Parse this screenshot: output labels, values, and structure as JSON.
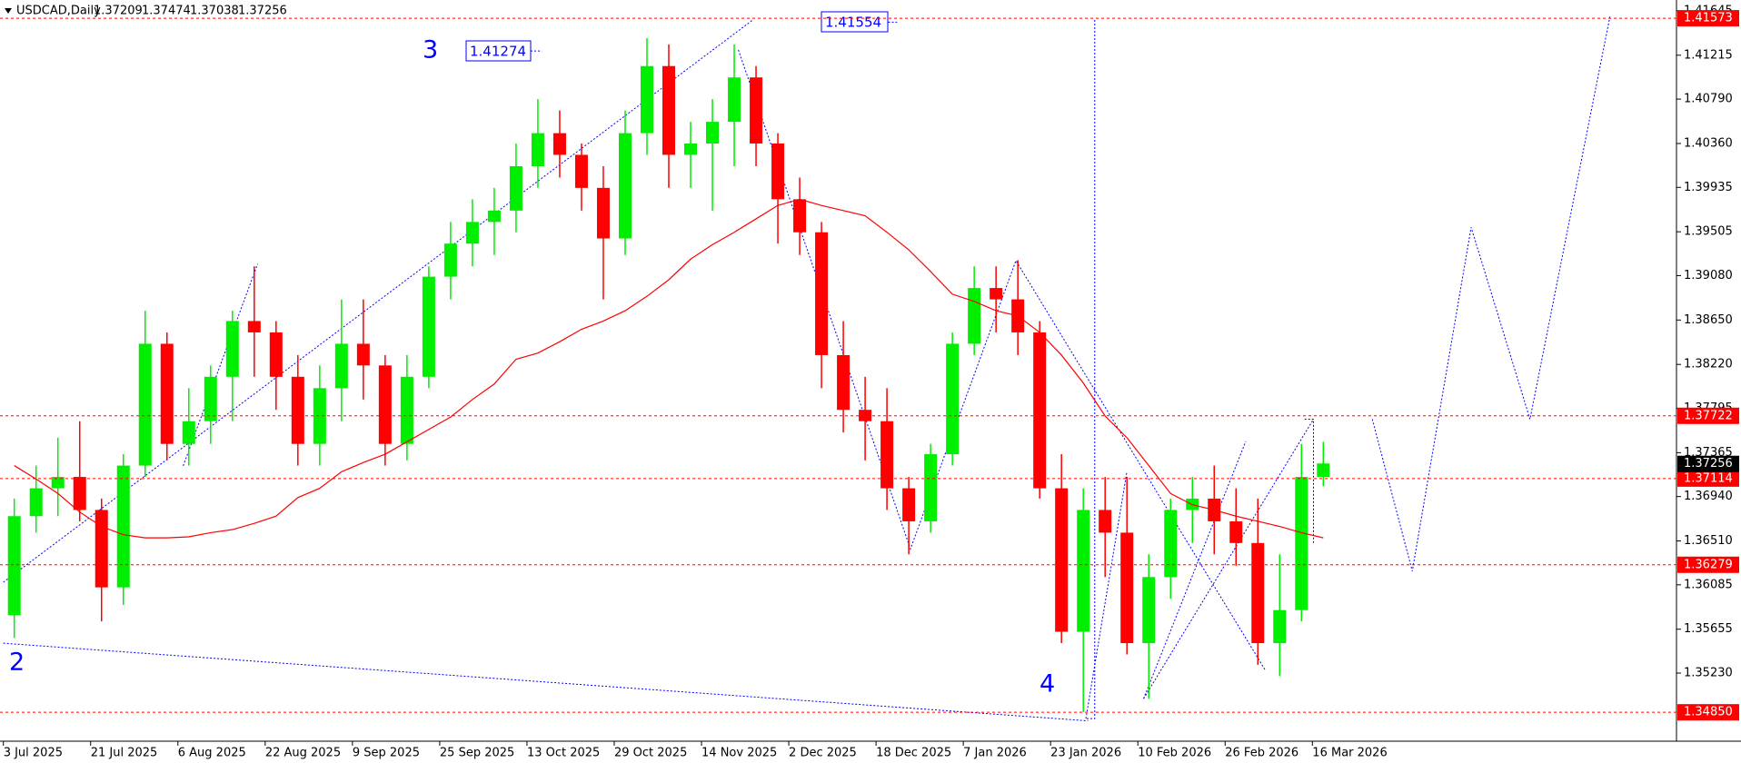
{
  "chart_data": {
    "type": "candlestick",
    "symbol": "USDCAD,Daily",
    "header_ohlc": [
      1.37209,
      1.37474,
      1.37038,
      1.37256
    ],
    "categories": [
      "3 Jul 2025",
      null,
      null,
      null,
      "21 Jul 2025",
      null,
      null,
      null,
      "6 Aug 2025",
      null,
      null,
      null,
      "22 Aug 2025",
      null,
      null,
      null,
      "9 Sep 2025",
      null,
      null,
      null,
      "25 Sep 2025",
      null,
      null,
      null,
      "13 Oct 2025",
      null,
      null,
      null,
      "29 Oct 2025",
      null,
      null,
      null,
      "14 Nov 2025",
      null,
      null,
      null,
      "2 Dec 2025",
      null,
      null,
      null,
      "18 Dec 2025",
      null,
      null,
      null,
      "7 Jan 2026",
      null,
      null,
      null,
      "23 Jan 2026",
      null,
      null,
      null,
      "10 Feb 2026",
      null,
      null,
      null,
      "26 Feb 2026",
      null,
      null,
      null,
      "16 Mar 2026"
    ],
    "open": [
      1.3579,
      1.3675,
      1.3702,
      1.3713,
      1.3681,
      1.3606,
      1.3724,
      1.3842,
      1.3745,
      1.3767,
      1.381,
      1.3864,
      1.3853,
      1.381,
      1.3745,
      1.3799,
      1.3842,
      1.3821,
      1.3745,
      1.381,
      1.3907,
      1.3939,
      1.396,
      1.3971,
      1.4014,
      1.4046,
      1.4025,
      1.3993,
      1.3944,
      1.4046,
      1.4111,
      1.4025,
      1.4036,
      1.4057,
      1.41,
      1.4036,
      1.3982,
      1.395,
      1.3831,
      1.3778,
      1.3767,
      1.3702,
      1.367,
      1.3735,
      1.3842,
      1.3896,
      1.3885,
      1.3853,
      1.3702,
      1.3563,
      1.3681,
      1.3659,
      1.3552,
      1.3616,
      1.3681,
      1.3692,
      1.367,
      1.3649,
      1.3552,
      1.3584,
      1.3713
    ],
    "high": [
      1.3692,
      1.3724,
      1.3751,
      1.3767,
      1.3692,
      1.3735,
      1.3874,
      1.3853,
      1.3799,
      1.3821,
      1.3874,
      1.3917,
      1.3864,
      1.3831,
      1.3821,
      1.3885,
      1.3885,
      1.3831,
      1.3831,
      1.3917,
      1.396,
      1.3982,
      1.3993,
      1.4036,
      1.4079,
      1.4068,
      1.4036,
      1.4014,
      1.4068,
      1.4138,
      1.4132,
      1.4057,
      1.4079,
      1.4132,
      1.4111,
      1.4046,
      1.4003,
      1.396,
      1.3864,
      1.381,
      1.3799,
      1.3713,
      1.3745,
      1.3853,
      1.3917,
      1.3917,
      1.3923,
      1.3864,
      1.3735,
      1.3702,
      1.3713,
      1.3713,
      1.3638,
      1.3692,
      1.3713,
      1.3724,
      1.3702,
      1.3692,
      1.3638,
      1.3745,
      1.3747
    ],
    "low": [
      1.3557,
      1.3659,
      1.3675,
      1.367,
      1.3573,
      1.3589,
      1.3713,
      1.3729,
      1.3724,
      1.3745,
      1.3767,
      1.381,
      1.3778,
      1.3724,
      1.3724,
      1.3767,
      1.3788,
      1.3724,
      1.3729,
      1.3799,
      1.3885,
      1.3917,
      1.3928,
      1.395,
      1.3993,
      1.4003,
      1.3971,
      1.3885,
      1.3928,
      1.4025,
      1.3993,
      1.3993,
      1.3971,
      1.4014,
      1.4014,
      1.3939,
      1.3928,
      1.3799,
      1.3756,
      1.3729,
      1.3681,
      1.3638,
      1.3659,
      1.3724,
      1.3831,
      1.3853,
      1.3831,
      1.3692,
      1.3552,
      1.3485,
      1.3616,
      1.3541,
      1.3498,
      1.3595,
      1.3649,
      1.3638,
      1.3627,
      1.3531,
      1.352,
      1.3573,
      1.3704
    ],
    "close": [
      1.3675,
      1.3702,
      1.3713,
      1.3681,
      1.3606,
      1.3724,
      1.3842,
      1.3745,
      1.3767,
      1.381,
      1.3864,
      1.3853,
      1.381,
      1.3745,
      1.3799,
      1.3842,
      1.3821,
      1.3745,
      1.381,
      1.3907,
      1.3939,
      1.396,
      1.3971,
      1.4014,
      1.4046,
      1.4025,
      1.3993,
      1.3944,
      1.4046,
      1.4111,
      1.4025,
      1.4036,
      1.4057,
      1.41,
      1.4036,
      1.3982,
      1.395,
      1.3831,
      1.3778,
      1.3767,
      1.3702,
      1.367,
      1.3735,
      1.3842,
      1.3896,
      1.3885,
      1.3853,
      1.3702,
      1.3563,
      1.3681,
      1.3659,
      1.3552,
      1.3616,
      1.3681,
      1.3692,
      1.367,
      1.3649,
      1.3552,
      1.3584,
      1.3713,
      1.3726
    ],
    "up_color": "#00ee00",
    "down_color": "#ff0000",
    "ma": {
      "color": "#ff0000",
      "values": [
        1.3724,
        1.3711,
        1.3697,
        1.3679,
        1.3665,
        1.3657,
        1.3654,
        1.3654,
        1.3655,
        1.3659,
        1.3662,
        1.3668,
        1.3675,
        1.3693,
        1.3702,
        1.3718,
        1.3727,
        1.3735,
        1.3747,
        1.3759,
        1.3771,
        1.3788,
        1.3803,
        1.3827,
        1.3833,
        1.3844,
        1.3856,
        1.3864,
        1.3874,
        1.3888,
        1.3904,
        1.3924,
        1.3938,
        1.395,
        1.3963,
        1.3976,
        1.3982,
        1.3976,
        1.3971,
        1.3966,
        1.395,
        1.3933,
        1.3912,
        1.389,
        1.3883,
        1.3874,
        1.3869,
        1.3853,
        1.3831,
        1.3804,
        1.3772,
        1.3751,
        1.3724,
        1.3697,
        1.3686,
        1.3681,
        1.3675,
        1.367,
        1.3665,
        1.3659,
        1.3654
      ]
    },
    "ylim": [
      1.3457,
      1.4175
    ],
    "yticks": [
      1.41645,
      1.41215,
      {
        "value": 1.4079,
        "label": "1.40790"
      },
      {
        "value": 1.4036,
        "label": "1.40360"
      },
      1.39935,
      1.39505,
      {
        "value": 1.3908,
        "label": "1.39080"
      },
      {
        "value": 1.3865,
        "label": "1.38650"
      },
      {
        "value": 1.3822,
        "label": "1.38220"
      },
      1.37795,
      1.37365,
      {
        "value": 1.3694,
        "label": "1.36940"
      },
      {
        "value": 1.3651,
        "label": "1.36510"
      },
      1.36085,
      1.35655,
      {
        "value": 1.3523,
        "label": "1.35230"
      }
    ],
    "levels": {
      "color": "#ff0000",
      "values": [
        1.41573,
        1.37722,
        1.37114,
        1.36279,
        {
          "value": 1.3485,
          "label": "1.34850"
        }
      ]
    },
    "current_price": 1.37256,
    "wave_labels": [
      "2",
      "3",
      "4"
    ],
    "price_tags": [
      1.41274,
      1.41554
    ]
  }
}
